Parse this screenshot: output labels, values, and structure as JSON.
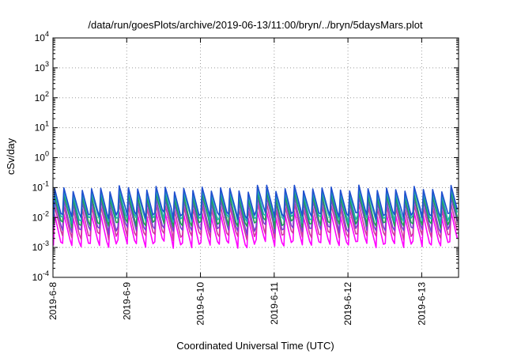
{
  "chart_data": {
    "type": "line",
    "title": "/data/run/goesPlots/archive/2019-06-13/11:00/bryn/../bryn/5daysMars.plot",
    "xlabel": "Coordinated Universal Time (UTC)",
    "ylabel": "cSv/day",
    "yscale": "log",
    "ylim": [
      0.0001,
      10000
    ],
    "xlim": [
      "2019-06-08 00:00",
      "2019-06-13 12:00"
    ],
    "grid": true,
    "legend": "none",
    "y_ticks": [
      {
        "base": "10",
        "exp": "4"
      },
      {
        "base": "10",
        "exp": "3"
      },
      {
        "base": "10",
        "exp": "2"
      },
      {
        "base": "10",
        "exp": "1"
      },
      {
        "base": "10",
        "exp": "0"
      },
      {
        "base": "10",
        "exp": "-1"
      },
      {
        "base": "10",
        "exp": "-2"
      },
      {
        "base": "10",
        "exp": "-3"
      },
      {
        "base": "10",
        "exp": "-4"
      }
    ],
    "x_ticks": [
      "2019-6-8",
      "2019-6-9",
      "2019-6-10",
      "2019-6-11",
      "2019-6-12",
      "2019-6-13"
    ],
    "series_colors": [
      "#1f4fd0",
      "#21a8b5",
      "#1f9d55",
      "#7a3fd0",
      "#d0389e",
      "#ff00ff"
    ],
    "pattern": {
      "description": "sawtooth: sharp rise then gradual decay, repeating about every 3 hours",
      "period_hours": 3,
      "series": [
        {
          "peak": 0.09,
          "trough": 0.012
        },
        {
          "peak": 0.07,
          "trough": 0.009
        },
        {
          "peak": 0.05,
          "trough": 0.006
        },
        {
          "peak": 0.035,
          "trough": 0.004
        },
        {
          "peak": 0.022,
          "trough": 0.0025
        },
        {
          "peak": 0.012,
          "trough": 0.0013
        }
      ]
    }
  }
}
